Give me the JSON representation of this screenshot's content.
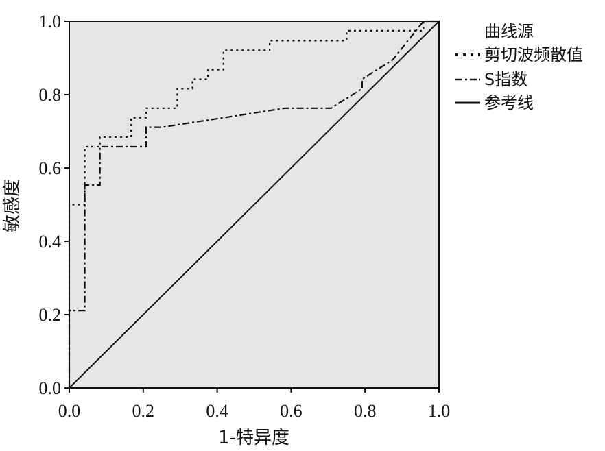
{
  "chart_data": {
    "type": "line",
    "title": "",
    "xlabel": "1-特异度",
    "ylabel": "敏感度",
    "xlim": [
      0,
      1
    ],
    "ylim": [
      0,
      1
    ],
    "x_ticks": [
      "0.0",
      "0.2",
      "0.4",
      "0.6",
      "0.8",
      "1.0"
    ],
    "y_ticks": [
      "0.0",
      "0.2",
      "0.4",
      "0.6",
      "0.8",
      "1.0"
    ],
    "grid": false,
    "background_color": "#e6e6e6",
    "legend": {
      "position": "right",
      "title": "曲线源",
      "entries": [
        "剪切波频散值",
        "S指数",
        "参考线"
      ]
    },
    "series": [
      {
        "name": "剪切波频散值",
        "style": "dotted",
        "points": [
          [
            0.0,
            0.0
          ],
          [
            0.0,
            0.5
          ],
          [
            0.042,
            0.5
          ],
          [
            0.042,
            0.658
          ],
          [
            0.083,
            0.658
          ],
          [
            0.083,
            0.684
          ],
          [
            0.167,
            0.684
          ],
          [
            0.167,
            0.737
          ],
          [
            0.208,
            0.737
          ],
          [
            0.208,
            0.763
          ],
          [
            0.292,
            0.763
          ],
          [
            0.292,
            0.816
          ],
          [
            0.333,
            0.816
          ],
          [
            0.333,
            0.842
          ],
          [
            0.375,
            0.842
          ],
          [
            0.375,
            0.868
          ],
          [
            0.417,
            0.868
          ],
          [
            0.417,
            0.921
          ],
          [
            0.542,
            0.921
          ],
          [
            0.542,
            0.947
          ],
          [
            0.75,
            0.947
          ],
          [
            0.75,
            0.974
          ],
          [
            0.958,
            0.974
          ],
          [
            0.958,
            1.0
          ],
          [
            1.0,
            1.0
          ]
        ]
      },
      {
        "name": "S指数",
        "style": "dash-dot",
        "points": [
          [
            0.0,
            0.0
          ],
          [
            0.0,
            0.211
          ],
          [
            0.042,
            0.211
          ],
          [
            0.042,
            0.553
          ],
          [
            0.083,
            0.553
          ],
          [
            0.083,
            0.658
          ],
          [
            0.208,
            0.658
          ],
          [
            0.208,
            0.711
          ],
          [
            0.25,
            0.711
          ],
          [
            0.417,
            0.737
          ],
          [
            0.583,
            0.763
          ],
          [
            0.708,
            0.763
          ],
          [
            0.792,
            0.816
          ],
          [
            0.792,
            0.842
          ],
          [
            0.875,
            0.895
          ],
          [
            0.958,
            1.0
          ],
          [
            1.0,
            1.0
          ]
        ]
      },
      {
        "name": "参考线",
        "style": "solid",
        "points": [
          [
            0.0,
            0.0
          ],
          [
            1.0,
            1.0
          ]
        ]
      }
    ]
  }
}
